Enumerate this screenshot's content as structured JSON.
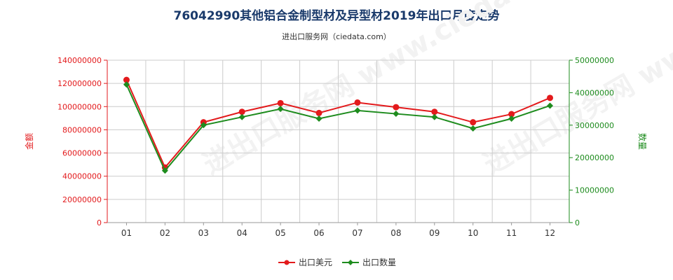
{
  "title": "76042990其他铝合金制型材及异型材2019年出口月度走势",
  "subtitle": "进出口服务网（ciedata.com）",
  "watermark": "进出口服务网 www.ciedata.com",
  "colors": {
    "left": "#e31a1c",
    "right": "#1e8c1e",
    "grid": "#cccccc",
    "title": "#1a3a6b"
  },
  "chart_data": {
    "type": "line",
    "categories": [
      "01",
      "02",
      "03",
      "04",
      "05",
      "06",
      "07",
      "08",
      "09",
      "10",
      "11",
      "12"
    ],
    "y_left": {
      "label": "金额",
      "min": 0,
      "max": 140000000,
      "step": 20000000,
      "ticks": [
        "0",
        "20000000",
        "40000000",
        "60000000",
        "80000000",
        "100000000",
        "120000000",
        "140000000"
      ]
    },
    "y_right": {
      "label": "数量",
      "min": 0,
      "max": 50000000,
      "step": 10000000,
      "ticks": [
        "0",
        "10000000",
        "20000000",
        "30000000",
        "40000000",
        "50000000"
      ]
    },
    "series": [
      {
        "name": "出口美元",
        "axis": "left",
        "color": "#e31a1c",
        "marker": "circle",
        "values": [
          123000000,
          47500000,
          86500000,
          95500000,
          103000000,
          94500000,
          103500000,
          99500000,
          95500000,
          86500000,
          93500000,
          107500000
        ]
      },
      {
        "name": "出口数量",
        "axis": "right",
        "color": "#1e8c1e",
        "marker": "diamond",
        "values": [
          42500000,
          16000000,
          30000000,
          32500000,
          35000000,
          32000000,
          34500000,
          33500000,
          32500000,
          29000000,
          32000000,
          36000000
        ]
      }
    ],
    "legend_position": "bottom",
    "grid": true
  }
}
